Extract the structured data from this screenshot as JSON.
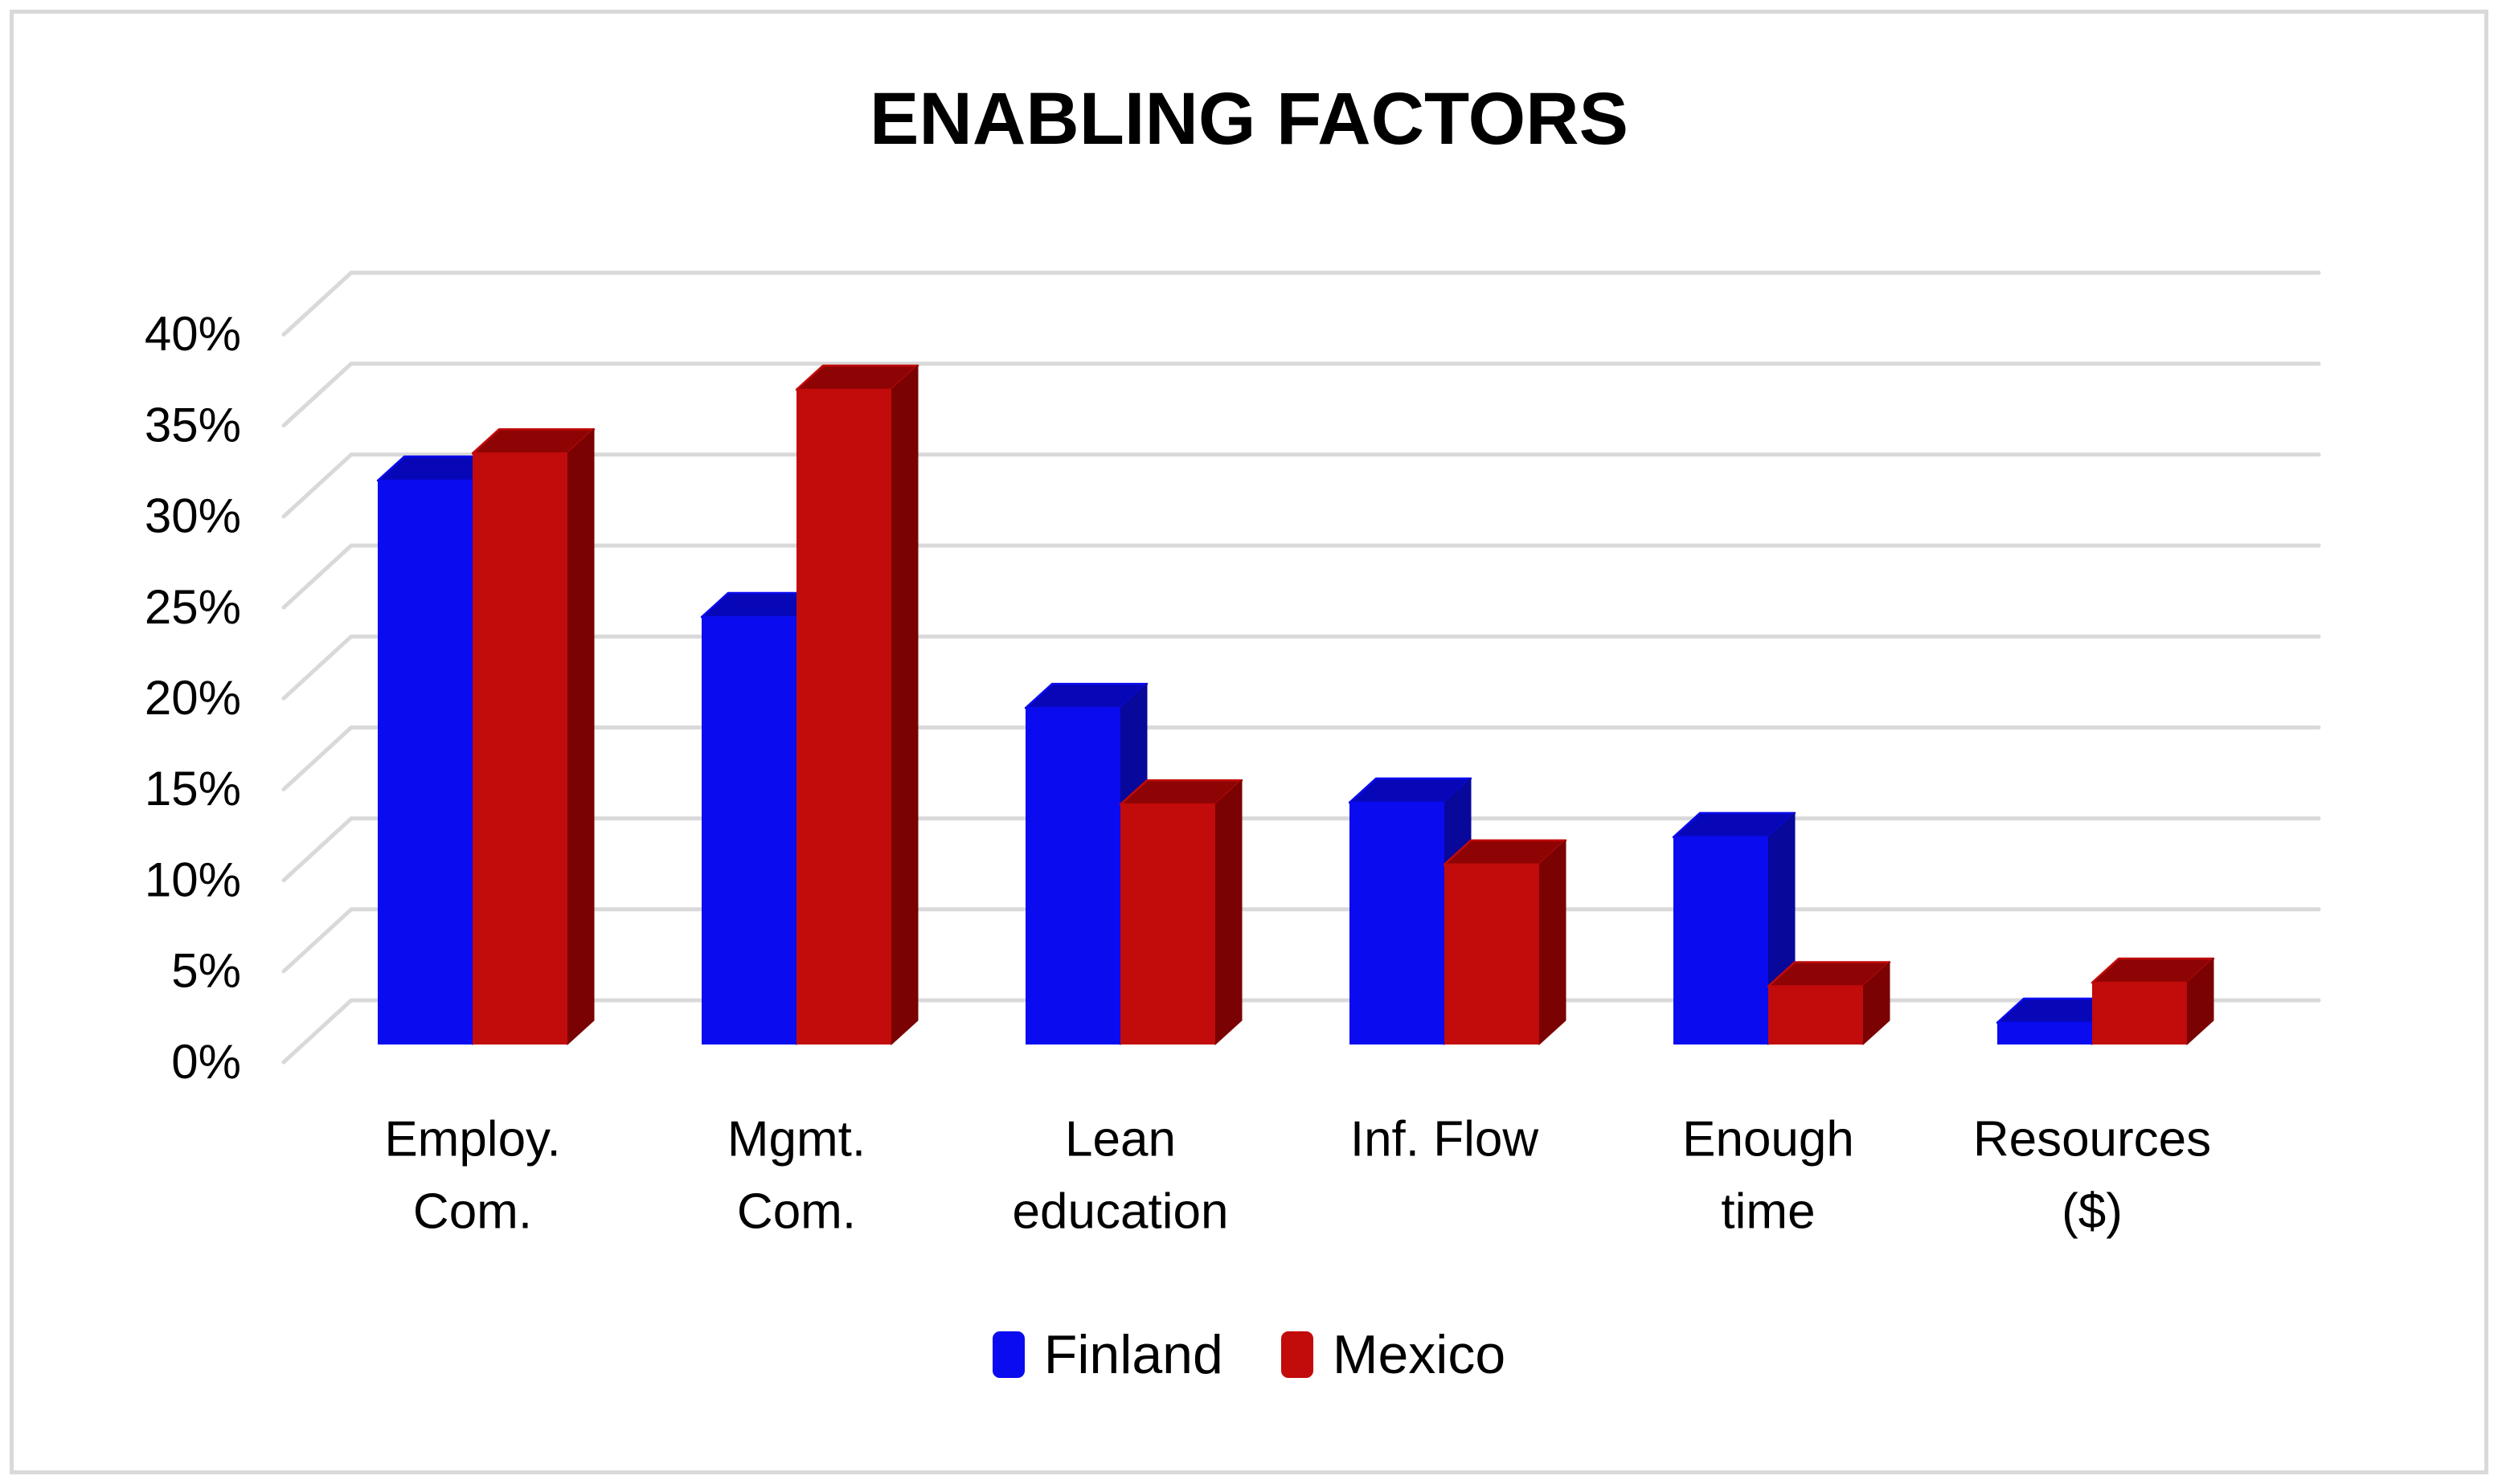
{
  "chart_data": {
    "type": "bar",
    "projection": "3d-oblique-column",
    "title": "ENABLING FACTORS",
    "categories": [
      "Employ. Com.",
      "Mgmt. Com.",
      "Lean education",
      "Inf. Flow",
      "Enough time",
      "Resources ($)"
    ],
    "category_lines": [
      [
        "Employ.",
        "Com."
      ],
      [
        "Mgmt.",
        "Com."
      ],
      [
        "Lean",
        "education"
      ],
      [
        "Inf. Flow"
      ],
      [
        "Enough",
        "time"
      ],
      [
        "Resources",
        "($)"
      ]
    ],
    "series": [
      {
        "name": "Finland",
        "color": "#0b0bef",
        "color_top": "#0707b8",
        "color_side": "#08089a",
        "values": [
          31,
          23.5,
          18.5,
          13.3,
          11.4,
          1.2
        ]
      },
      {
        "name": "Mexico",
        "color": "#c20b0b",
        "color_top": "#8e0404",
        "color_side": "#7a0202",
        "values": [
          32.5,
          36,
          13.2,
          9.9,
          3.2,
          3.4
        ]
      }
    ],
    "xlabel": "",
    "ylabel": "",
    "ylim": [
      0,
      40
    ],
    "ytick_values": [
      0,
      5,
      10,
      15,
      20,
      25,
      30,
      35,
      40
    ],
    "ytick_labels": [
      "0%",
      "5%",
      "10%",
      "15%",
      "20%",
      "25%",
      "30%",
      "35%",
      "40%"
    ],
    "grid": true,
    "legend_position": "bottom",
    "colors": {
      "gridline": "#d9d9d9",
      "frame_border": "#d9d9d9",
      "text": "#000000",
      "background": "#ffffff"
    }
  }
}
